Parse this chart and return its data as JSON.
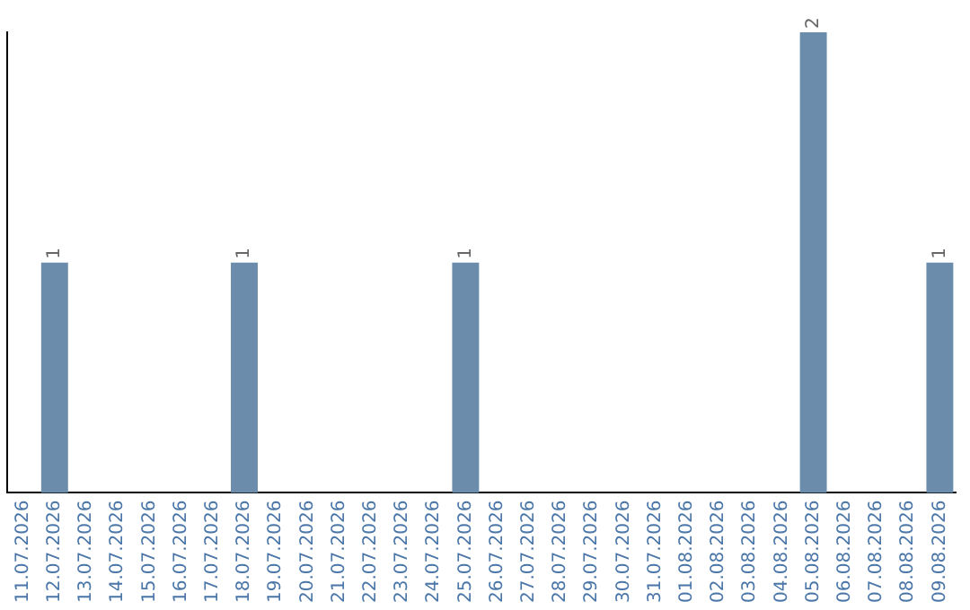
{
  "chart_data": {
    "type": "bar",
    "categories": [
      "11.07.2026",
      "12.07.2026",
      "13.07.2026",
      "14.07.2026",
      "15.07.2026",
      "16.07.2026",
      "17.07.2026",
      "18.07.2026",
      "19.07.2026",
      "20.07.2026",
      "21.07.2026",
      "22.07.2026",
      "23.07.2026",
      "24.07.2026",
      "25.07.2026",
      "26.07.2026",
      "27.07.2026",
      "28.07.2026",
      "29.07.2026",
      "30.07.2026",
      "31.07.2026",
      "01.08.2026",
      "02.08.2026",
      "03.08.2026",
      "04.08.2026",
      "05.08.2026",
      "06.08.2026",
      "07.08.2026",
      "08.08.2026",
      "09.08.2026"
    ],
    "values": [
      0,
      1,
      0,
      0,
      0,
      0,
      0,
      1,
      0,
      0,
      0,
      0,
      0,
      0,
      1,
      0,
      0,
      0,
      0,
      0,
      0,
      0,
      0,
      0,
      0,
      2,
      0,
      0,
      0,
      1
    ],
    "value_labels": [
      null,
      "1",
      null,
      null,
      null,
      null,
      null,
      "1",
      null,
      null,
      null,
      null,
      null,
      null,
      "1",
      null,
      null,
      null,
      null,
      null,
      null,
      null,
      null,
      null,
      null,
      "2",
      null,
      null,
      null,
      "1"
    ],
    "color": "#6b8caa",
    "tick_labels": "x",
    "grid": false,
    "legend": false
  }
}
